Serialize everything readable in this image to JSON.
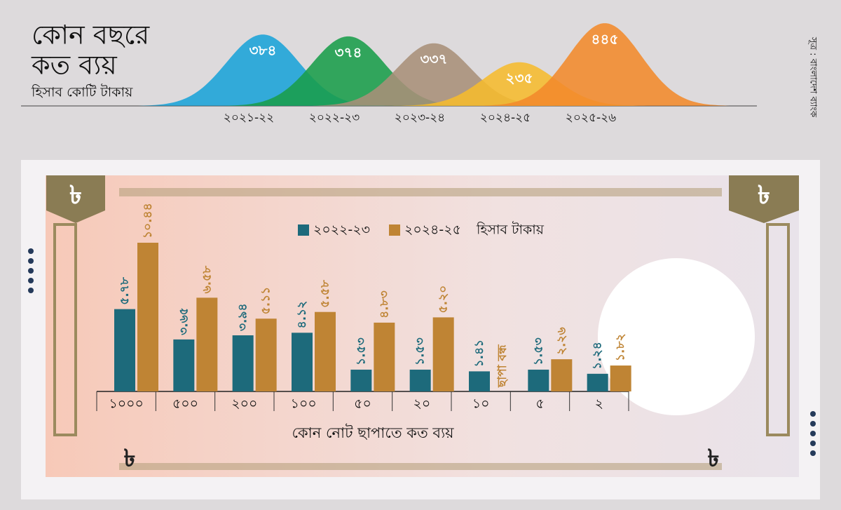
{
  "source": "সূত্র : বাংলাদেশ ব্যাংক",
  "note_symbol": "৳",
  "chart_data": [
    {
      "type": "area",
      "title": [
        "কোন বছরে",
        "কত ব্যয়"
      ],
      "subtitle": "হিসাব কোটি টাকায়",
      "categories": [
        "২০২১-২২",
        "২০২২-২৩",
        "২০২৩-২৪",
        "২০২৪-২৫",
        "২০২৫-২৬"
      ],
      "values": [
        384,
        374,
        337,
        235,
        445
      ],
      "value_labels": [
        "৩৮৪",
        "৩৭৪",
        "৩৩৭",
        "২৩৫",
        "৪৪৫"
      ],
      "colors": [
        "#1aa3d8",
        "#199d4a",
        "#a99079",
        "#f6bb2e",
        "#f28a2b"
      ]
    },
    {
      "type": "bar",
      "unit": "হিসাব টাকায়",
      "x_label": "কোন নোট ছাপাতে কত ব্যয়",
      "categories": [
        "১০০০",
        "৫০০",
        "২০০",
        "১০০",
        "৫০",
        "২০",
        "১০",
        "৫",
        "২"
      ],
      "series": [
        {
          "name": "২০২২-২৩",
          "color": "#1d6a7b",
          "values": [
            5.78,
            3.65,
            3.94,
            4.12,
            1.53,
            1.53,
            1.41,
            1.53,
            1.24
          ],
          "value_labels": [
            "৫.৭৮",
            "৩.৬৫",
            "৩.৯৪",
            "৪.১২",
            "১.৫৩",
            "১.৫৩",
            "১.৪১",
            "১.৫৩",
            "১.২৪"
          ]
        },
        {
          "name": "২০২৪-২৫",
          "color": "#bf8434",
          "values": [
            10.44,
            6.58,
            5.11,
            5.58,
            4.83,
            5.2,
            null,
            2.26,
            1.82
          ],
          "value_labels": [
            "১০.৪৪",
            "৬.৫৮",
            "৫.১১",
            "৫.৫৮",
            "৪.৮৩",
            "৫.২০",
            "ছাপা বন্ধ",
            "২.২৬",
            "১.৮২"
          ]
        }
      ]
    }
  ]
}
